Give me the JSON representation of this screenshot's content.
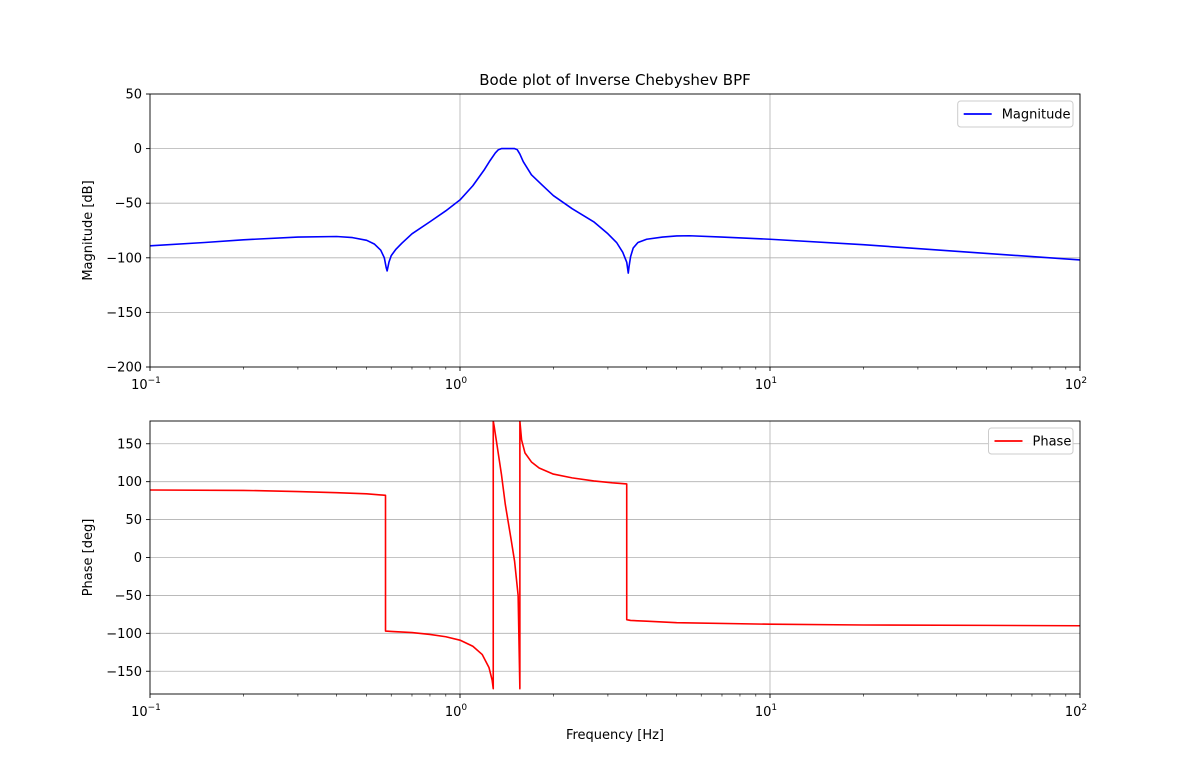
{
  "chart_data": [
    {
      "type": "line",
      "title": "Bode plot of Inverse Chebyshev BPF",
      "xlabel": "",
      "ylabel": "Magnitude  [dB]",
      "xscale": "log",
      "xlim": [
        0.1,
        100
      ],
      "ylim": [
        -200,
        50
      ],
      "yticks": [
        50,
        0,
        -50,
        -100,
        -150,
        -200
      ],
      "ytick_labels": [
        "50",
        "0",
        "−50",
        "−100",
        "−150",
        "−200"
      ],
      "xticks": [
        0.1,
        1,
        10,
        100
      ],
      "xtick_labels": [
        {
          "base": "10",
          "exp": "−1"
        },
        {
          "base": "10",
          "exp": "0"
        },
        {
          "base": "10",
          "exp": "1"
        },
        {
          "base": "10",
          "exp": "2"
        }
      ],
      "grid": true,
      "legend_placement": "upper right",
      "series": [
        {
          "name": "Magnitude",
          "color": "#0000ff",
          "x": [
            0.1,
            0.15,
            0.2,
            0.3,
            0.4,
            0.45,
            0.5,
            0.53,
            0.555,
            0.57,
            0.578,
            0.582,
            0.59,
            0.6,
            0.62,
            0.65,
            0.7,
            0.8,
            0.9,
            1.0,
            1.1,
            1.2,
            1.25,
            1.3,
            1.33,
            1.36,
            1.4,
            1.45,
            1.5,
            1.53,
            1.56,
            1.6,
            1.7,
            1.85,
            2.0,
            2.3,
            2.7,
            3.0,
            3.2,
            3.35,
            3.45,
            3.49,
            3.51,
            3.55,
            3.62,
            3.75,
            4.0,
            4.5,
            5.0,
            5.5,
            7.0,
            10.0,
            20.0,
            50.0,
            100.0
          ],
          "y": [
            -89,
            -86,
            -83.5,
            -81,
            -80.5,
            -81.5,
            -84,
            -87.5,
            -93,
            -100,
            -109,
            -112,
            -104,
            -98,
            -92.5,
            -86.5,
            -78,
            -67,
            -57,
            -47,
            -34,
            -19,
            -11,
            -4,
            -1,
            0,
            0,
            0,
            0,
            -1,
            -5,
            -12,
            -24,
            -34,
            -43,
            -55,
            -67,
            -78,
            -86,
            -95,
            -104,
            -114,
            -108,
            -99,
            -91,
            -86,
            -83,
            -81,
            -80,
            -79.8,
            -81,
            -83,
            -88,
            -96,
            -102
          ]
        }
      ]
    },
    {
      "type": "line",
      "title": "",
      "xlabel": "Frequency  [Hz]",
      "ylabel": "Phase  [deg]",
      "xscale": "log",
      "xlim": [
        0.1,
        100
      ],
      "ylim": [
        -180,
        180
      ],
      "yticks": [
        150,
        100,
        50,
        0,
        -50,
        -100,
        -150
      ],
      "ytick_labels": [
        "150",
        "100",
        "50",
        "0",
        "−50",
        "−100",
        "−150"
      ],
      "xticks": [
        0.1,
        1,
        10,
        100
      ],
      "xtick_labels": [
        {
          "base": "10",
          "exp": "−1"
        },
        {
          "base": "10",
          "exp": "0"
        },
        {
          "base": "10",
          "exp": "1"
        },
        {
          "base": "10",
          "exp": "2"
        }
      ],
      "grid": true,
      "legend_placement": "upper right",
      "series": [
        {
          "name": "Phase",
          "color": "#ff0000",
          "x": [
            0.1,
            0.2,
            0.3,
            0.4,
            0.5,
            0.575,
            0.5751,
            0.6,
            0.7,
            0.8,
            0.9,
            1.0,
            1.1,
            1.18,
            1.24,
            1.27,
            1.28,
            1.2801,
            1.29,
            1.32,
            1.36,
            1.4,
            1.46,
            1.5,
            1.54,
            1.56,
            1.5601,
            1.58,
            1.62,
            1.7,
            1.8,
            2.0,
            2.3,
            2.7,
            3.1,
            3.45,
            3.4501,
            3.55,
            4.0,
            5.0,
            10.0,
            20.0,
            50.0,
            100.0
          ],
          "y": [
            89,
            88.5,
            87,
            85.5,
            84,
            82,
            -97,
            -97.5,
            -99,
            -101.5,
            -104.5,
            -109,
            -117,
            -128,
            -145,
            -162,
            -173,
            180,
            172,
            145,
            110,
            70,
            25,
            -5,
            -50,
            -173,
            180,
            155,
            138,
            126,
            118,
            110,
            105,
            101,
            98.5,
            97,
            -82,
            -83,
            -84,
            -86,
            -88,
            -89,
            -89.5,
            -90
          ]
        }
      ]
    }
  ]
}
